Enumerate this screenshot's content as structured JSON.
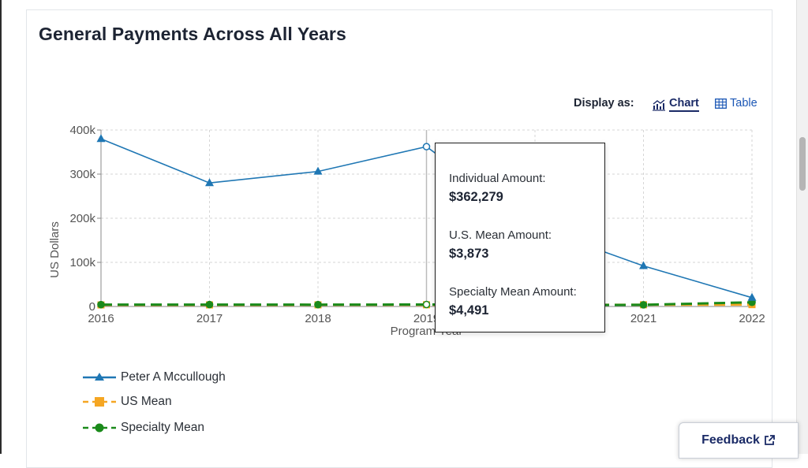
{
  "page": {
    "title": "General Payments Across All Years",
    "display_as_label": "Display as:",
    "toggle_chart_label": "Chart",
    "toggle_table_label": "Table",
    "feedback_label": "Feedback"
  },
  "tooltip": {
    "individual_label": "Individual Amount:",
    "individual_value": "$362,279",
    "us_mean_label": "U.S. Mean Amount:",
    "us_mean_value": "$3,873",
    "specialty_label": "Specialty Mean Amount:",
    "specialty_value": "$4,491"
  },
  "colors": {
    "individual": "#1f77b4",
    "us_mean": "#f5a623",
    "specialty": "#1a8a1a"
  },
  "chart_data": {
    "type": "line",
    "x": [
      "2016",
      "2017",
      "2018",
      "2019",
      "2020",
      "2021",
      "2022"
    ],
    "xlabel": "Program Year",
    "ylabel": "US Dollars",
    "ylim": [
      0,
      400000
    ],
    "yticks": [
      0,
      100000,
      200000,
      300000,
      400000
    ],
    "ytick_labels": [
      "0",
      "100k",
      "200k",
      "300k",
      "400k"
    ],
    "grid": true,
    "legend_position": "bottom-left",
    "series": [
      {
        "name": "Peter A Mccullough",
        "values": [
          380000,
          280000,
          306000,
          362279,
          180000,
          92000,
          20000
        ],
        "marker": "triangle",
        "dash": "solid",
        "color": "#1f77b4"
      },
      {
        "name": "US Mean",
        "values": [
          3500,
          3600,
          3700,
          3873,
          3800,
          3900,
          4200
        ],
        "marker": "square",
        "dash": "dashed",
        "color": "#f5a623"
      },
      {
        "name": "Specialty Mean",
        "values": [
          4200,
          4300,
          4100,
          4491,
          3000,
          3800,
          9500
        ],
        "marker": "circle",
        "dash": "dashed",
        "color": "#1a8a1a"
      }
    ],
    "hover_index": 3
  }
}
